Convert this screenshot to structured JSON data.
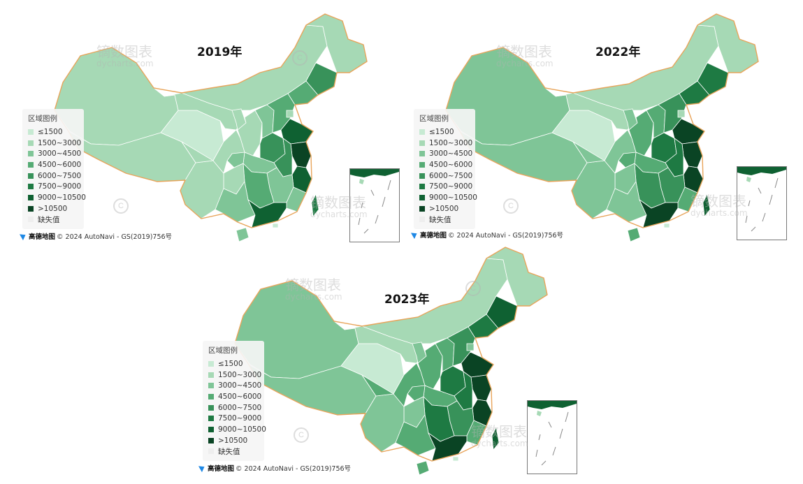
{
  "legend": {
    "title": "区域图例",
    "items": [
      {
        "label": "≤1500",
        "color": "#c7ead3"
      },
      {
        "label": "1500~3000",
        "color": "#a6d9b5"
      },
      {
        "label": "3000~4500",
        "color": "#7fc597"
      },
      {
        "label": "4500~6000",
        "color": "#55ab74"
      },
      {
        "label": "6000~7500",
        "color": "#38925a"
      },
      {
        "label": "7500~9000",
        "color": "#1e7a43"
      },
      {
        "label": "9000~10500",
        "color": "#0f6132"
      },
      {
        "label": ">10500",
        "color": "#0a4424"
      },
      {
        "label": "缺失值",
        "color": "#eeeeee"
      }
    ]
  },
  "attribution": {
    "logo": "高德地图",
    "text": "© 2024 AutoNavi - GS(2019)756号"
  },
  "watermark": {
    "cn": "镝数图表",
    "en": "dycharts.com"
  },
  "maps": [
    {
      "title": "2019年",
      "fills": [
        1,
        1,
        0,
        1,
        1,
        1,
        1,
        2,
        3,
        3,
        4,
        6,
        4,
        7,
        6,
        4,
        2,
        2,
        3,
        2,
        2,
        1,
        1,
        2,
        6,
        1,
        1,
        2,
        5,
        1,
        0
      ]
    },
    {
      "title": "2022年",
      "fills": [
        2,
        2,
        0,
        1,
        1,
        2,
        3,
        3,
        4,
        5,
        5,
        7,
        5,
        7,
        7,
        5,
        3,
        4,
        4,
        3,
        3,
        2,
        2,
        2,
        7,
        2,
        1,
        3,
        6,
        1,
        0
      ]
    },
    {
      "title": "2023年",
      "fills": [
        2,
        2,
        0,
        1,
        1,
        2,
        3,
        3,
        4,
        5,
        6,
        7,
        5,
        7,
        7,
        5,
        3,
        4,
        5,
        3,
        3,
        2,
        2,
        3,
        7,
        3,
        1,
        3,
        6,
        2,
        0
      ]
    }
  ]
}
